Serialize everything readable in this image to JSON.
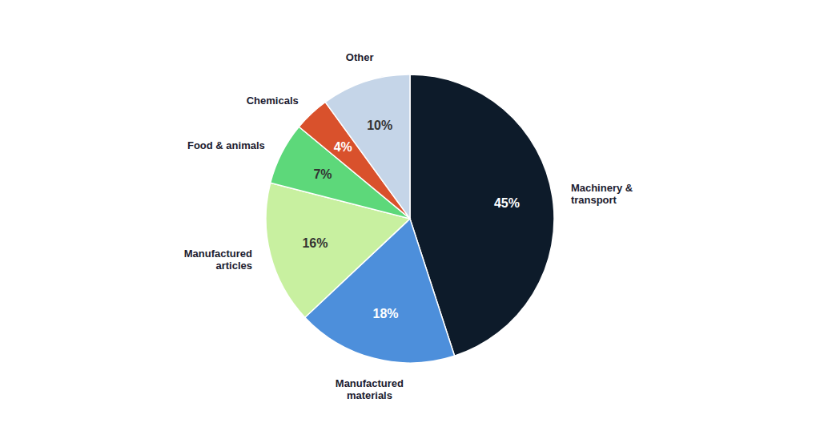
{
  "chart_data": {
    "type": "pie",
    "categories": [
      "Machinery &\ntransport",
      "Manufactured\nmaterials",
      "Manufactured\narticles",
      "Food & animals",
      "Chemicals",
      "Other"
    ],
    "values": [
      45,
      18,
      16,
      7,
      4,
      10
    ],
    "value_labels": [
      "45%",
      "18%",
      "16%",
      "7%",
      "4%",
      "10%"
    ],
    "colors": [
      "#0d1b2a",
      "#4d8fdb",
      "#c8f0a0",
      "#5dd87a",
      "#d9512c",
      "#c5d5e8"
    ],
    "data_labels": true
  }
}
